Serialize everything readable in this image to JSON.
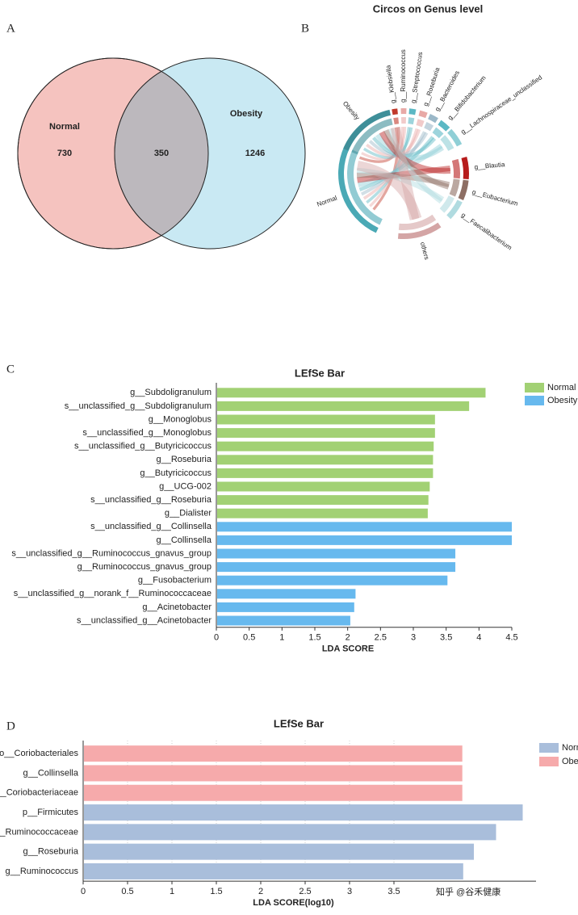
{
  "chart_data": [
    {
      "type": "venn",
      "panel": "A",
      "sets": [
        {
          "name": "Normal",
          "color": "#f5c3bf"
        },
        {
          "name": "Obesity",
          "color": "#c9e9f3"
        }
      ],
      "values": [
        730,
        350,
        1246
      ],
      "overlap_color": "#bcb8bd"
    },
    {
      "type": "circos",
      "panel": "B",
      "title": "Circos on Genus level",
      "labels": [
        "g__Klebsiella",
        "g__Ruminococcus",
        "g__Streptococcus",
        "g__Roseburia",
        "g__Bacteroides",
        "g__Bifidobacterium",
        "g__Lachnospiraceae_unclassified",
        "g__Blautia",
        "g__Eubacterium",
        "g__Faecalibacterium",
        "others",
        "Normal",
        "Obesity"
      ],
      "colors": [
        "#c0392b",
        "#e8a9a6",
        "#5bb8c4",
        "#e8a9a6",
        "#9bb8c8",
        "#5bb8c4",
        "#8fcfd6",
        "#b71c1c",
        "#8d6e63",
        "#b0dbe0",
        "#d4a5a5",
        "#4aa9b5",
        "#3f8f99"
      ]
    },
    {
      "type": "barh",
      "panel": "C",
      "title": "LEfSe Bar",
      "xlabel": "LDA SCORE",
      "categories": [
        "g__Subdoligranulum",
        "s__unclassified_g__Subdoligranulum",
        "g__Monoglobus",
        "s__unclassified_g__Monoglobus",
        "s__unclassified_g__Butyricicoccus",
        "g__Roseburia",
        "g__Butyricicoccus",
        "g__UCG-002",
        "s__unclassified_g__Roseburia",
        "g__Dialister",
        "s__unclassified_g__Collinsella",
        "g__Collinsella",
        "s__unclassified_g__Ruminococcus_gnavus_group",
        "g__Ruminococcus_gnavus_group",
        "g__Fusobacterium",
        "s__unclassified_g__norank_f__Ruminococcaceae",
        "g__Acinetobacter",
        "s__unclassified_g__Acinetobacter"
      ],
      "series": [
        {
          "name": "Normal",
          "color": "#a2d174",
          "values": [
            4.1,
            3.85,
            3.33,
            3.33,
            3.31,
            3.3,
            3.3,
            3.25,
            3.23,
            3.22,
            null,
            null,
            null,
            null,
            null,
            null,
            null,
            null
          ]
        },
        {
          "name": "Obesity",
          "color": "#67b9ee",
          "values": [
            null,
            null,
            null,
            null,
            null,
            null,
            null,
            null,
            null,
            null,
            4.5,
            4.5,
            3.64,
            3.64,
            3.52,
            2.12,
            2.1,
            2.04
          ]
        }
      ],
      "xlim": [
        0,
        4.5
      ],
      "xticks": [
        0,
        0.5,
        1,
        1.5,
        2,
        2.5,
        3,
        3.5,
        4,
        4.5
      ],
      "grid": false
    },
    {
      "type": "barh",
      "panel": "D",
      "title": "LEfSe Bar",
      "xlabel": "LDA SCORE(log10)",
      "categories": [
        "o__Coriobacteriales",
        "g__Collinsella",
        "f__Coriobacteriaceae",
        "p__Firmicutes",
        "f__Ruminococcaceae",
        "g__Roseburia",
        "g__Ruminococcus"
      ],
      "series": [
        {
          "name": "Normal",
          "color": "#a9bedb",
          "values": [
            null,
            null,
            null,
            4.95,
            4.65,
            4.4,
            4.28
          ]
        },
        {
          "name": "Obesity",
          "color": "#f6aaab",
          "values": [
            4.27,
            4.27,
            4.27,
            null,
            null,
            null,
            null
          ]
        }
      ],
      "xlim": [
        0,
        5.1
      ],
      "xticks": [
        0,
        0.5,
        1,
        1.5,
        2,
        2.5,
        3,
        3.5
      ],
      "grid": true,
      "watermark": "知乎 @谷禾健康"
    }
  ]
}
